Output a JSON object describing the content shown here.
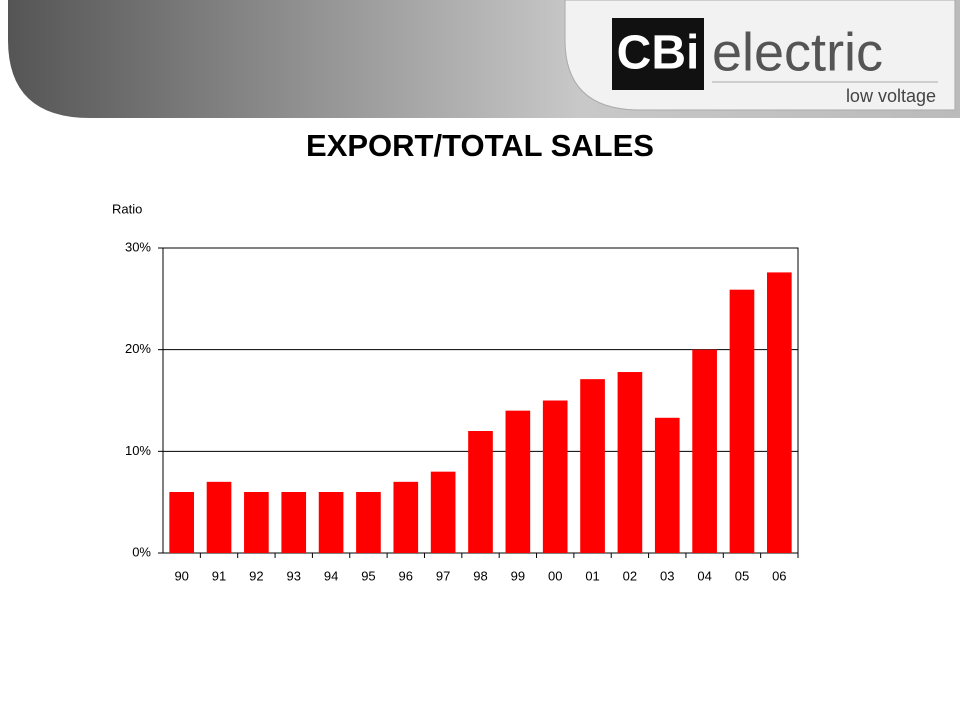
{
  "logo": {
    "brand": "CBi",
    "name": "electric",
    "tagline": "low voltage"
  },
  "chart_data": {
    "type": "bar",
    "title": "EXPORT/TOTAL SALES",
    "y_label": "Ratio",
    "categories": [
      "90",
      "91",
      "92",
      "93",
      "94",
      "95",
      "96",
      "97",
      "98",
      "99",
      "00",
      "01",
      "02",
      "03",
      "04",
      "05",
      "06"
    ],
    "values": [
      6,
      7,
      6,
      6,
      6,
      6,
      7,
      8,
      12,
      14,
      15,
      17.1,
      17.8,
      13.3,
      20,
      25.9,
      27.6
    ],
    "color": "#ff0000",
    "ylim": [
      0,
      30
    ],
    "yticks": [
      {
        "value": 0,
        "label": "0%"
      },
      {
        "value": 10,
        "label": "10%"
      },
      {
        "value": 20,
        "label": "20%"
      },
      {
        "value": 30,
        "label": "30%"
      }
    ],
    "grid": true
  }
}
